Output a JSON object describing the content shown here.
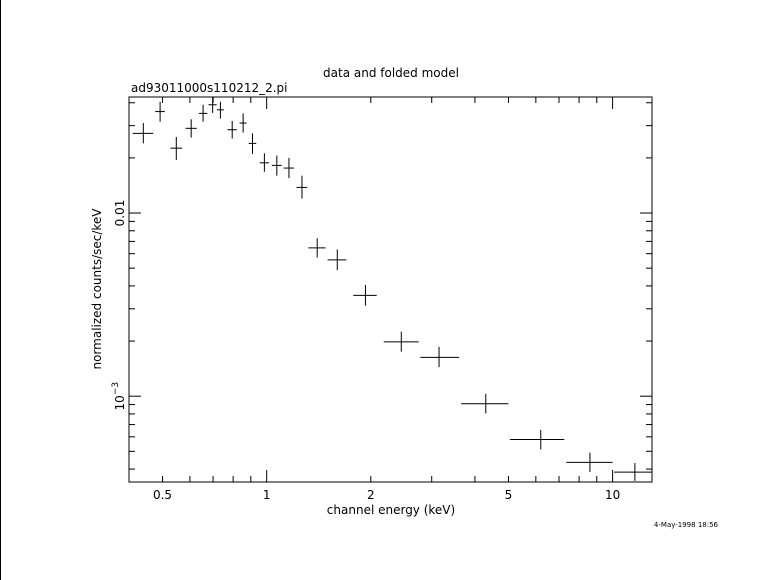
{
  "chart_data": {
    "type": "scatter",
    "title": "data and folded model",
    "subtitle": "ad93011000s110212_2.pi",
    "xlabel": "channel energy (keV)",
    "ylabel": "normalized counts/sec/keV",
    "x_scale": "log",
    "y_scale": "log",
    "xlim": [
      0.4,
      13
    ],
    "ylim": [
      0.00034,
      0.043
    ],
    "x_tick_labels": [
      "0.5",
      "1",
      "2",
      "5",
      "10"
    ],
    "x_tick_values": [
      0.5,
      1,
      2,
      5,
      10
    ],
    "y_tick_labels": [
      {
        "value": 0.01,
        "base": "0.01",
        "exp": ""
      },
      {
        "value": 0.001,
        "base": "10",
        "exp": "−3"
      }
    ],
    "timestamp": "4-May-1998 18:56",
    "points": [
      {
        "x": 0.44,
        "xlo": 0.41,
        "xhi": 0.47,
        "y": 0.0272,
        "ylo": 0.024,
        "yhi": 0.031
      },
      {
        "x": 0.492,
        "xlo": 0.476,
        "xhi": 0.508,
        "y": 0.0358,
        "ylo": 0.0315,
        "yhi": 0.0405
      },
      {
        "x": 0.548,
        "xlo": 0.527,
        "xhi": 0.57,
        "y": 0.0226,
        "ylo": 0.0195,
        "yhi": 0.026
      },
      {
        "x": 0.605,
        "xlo": 0.583,
        "xhi": 0.628,
        "y": 0.029,
        "ylo": 0.0258,
        "yhi": 0.0325
      },
      {
        "x": 0.655,
        "xlo": 0.637,
        "xhi": 0.674,
        "y": 0.035,
        "ylo": 0.0315,
        "yhi": 0.039
      },
      {
        "x": 0.698,
        "xlo": 0.679,
        "xhi": 0.717,
        "y": 0.039,
        "ylo": 0.0352,
        "yhi": 0.0432
      },
      {
        "x": 0.735,
        "xlo": 0.718,
        "xhi": 0.752,
        "y": 0.0366,
        "ylo": 0.0328,
        "yhi": 0.0405
      },
      {
        "x": 0.795,
        "xlo": 0.77,
        "xhi": 0.82,
        "y": 0.0285,
        "ylo": 0.0255,
        "yhi": 0.0318
      },
      {
        "x": 0.855,
        "xlo": 0.835,
        "xhi": 0.875,
        "y": 0.031,
        "ylo": 0.0275,
        "yhi": 0.035
      },
      {
        "x": 0.91,
        "xlo": 0.887,
        "xhi": 0.933,
        "y": 0.024,
        "ylo": 0.021,
        "yhi": 0.0272
      },
      {
        "x": 0.985,
        "xlo": 0.955,
        "xhi": 1.015,
        "y": 0.0188,
        "ylo": 0.0168,
        "yhi": 0.0212
      },
      {
        "x": 1.07,
        "xlo": 1.035,
        "xhi": 1.105,
        "y": 0.0182,
        "ylo": 0.016,
        "yhi": 0.0206
      },
      {
        "x": 1.16,
        "xlo": 1.12,
        "xhi": 1.2,
        "y": 0.0176,
        "ylo": 0.0155,
        "yhi": 0.02
      },
      {
        "x": 1.265,
        "xlo": 1.22,
        "xhi": 1.31,
        "y": 0.0138,
        "ylo": 0.012,
        "yhi": 0.016
      },
      {
        "x": 1.4,
        "xlo": 1.32,
        "xhi": 1.48,
        "y": 0.00645,
        "ylo": 0.00572,
        "yhi": 0.00728
      },
      {
        "x": 1.6,
        "xlo": 1.5,
        "xhi": 1.7,
        "y": 0.00555,
        "ylo": 0.00488,
        "yhi": 0.00632
      },
      {
        "x": 1.93,
        "xlo": 1.78,
        "xhi": 2.08,
        "y": 0.00355,
        "ylo": 0.00312,
        "yhi": 0.00405
      },
      {
        "x": 2.45,
        "xlo": 2.18,
        "xhi": 2.75,
        "y": 0.00198,
        "ylo": 0.00175,
        "yhi": 0.00225
      },
      {
        "x": 3.15,
        "xlo": 2.78,
        "xhi": 3.6,
        "y": 0.00163,
        "ylo": 0.00144,
        "yhi": 0.00186
      },
      {
        "x": 4.3,
        "xlo": 3.65,
        "xhi": 5.0,
        "y": 0.00091,
        "ylo": 0.000805,
        "yhi": 0.00103
      },
      {
        "x": 6.2,
        "xlo": 5.05,
        "xhi": 7.25,
        "y": 0.00058,
        "ylo": 0.000512,
        "yhi": 0.000655
      },
      {
        "x": 8.6,
        "xlo": 7.35,
        "xhi": 10.0,
        "y": 0.000435,
        "ylo": 0.000385,
        "yhi": 0.000492
      },
      {
        "x": 11.6,
        "xlo": 10.1,
        "xhi": 13.0,
        "y": 0.000385,
        "ylo": 0.000345,
        "yhi": 0.000432
      }
    ]
  }
}
